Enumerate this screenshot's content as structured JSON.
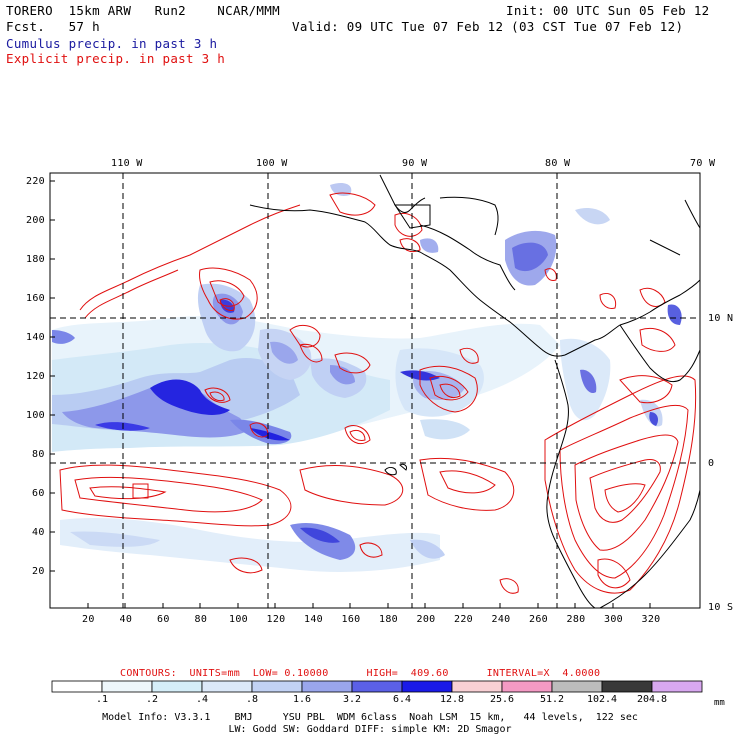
{
  "header": {
    "model": "TORERO  15km ARW   Run2    NCAR/MMM",
    "init": "Init: 00 UTC Sun 05 Feb 12",
    "fcst": "Fcst.   57 h",
    "valid": "Valid: 09 UTC Tue 07 Feb 12 (03 CST Tue 07 Feb 12)",
    "cumulus_label": "Cumulus precip. in past 3 h",
    "explicit_label": "Explicit precip. in past 3 h"
  },
  "axes": {
    "top_lon_labels": [
      "110 W",
      "100 W",
      "90 W",
      "80 W",
      "70 W"
    ],
    "right_lat_labels": [
      "10 N",
      "0",
      "10 S"
    ],
    "left_y_ticks": [
      "220",
      "200",
      "180",
      "160",
      "140",
      "120",
      "100",
      "80",
      "60",
      "40",
      "20"
    ],
    "bottom_x_ticks": [
      "20",
      "40",
      "60",
      "80",
      "100",
      "120",
      "140",
      "160",
      "180",
      "200",
      "220",
      "240",
      "260",
      "280",
      "300",
      "320"
    ]
  },
  "contours_info": {
    "text": "CONTOURS:  UNITS=mm  LOW= 0.10000      HIGH=  409.60      INTERVAL=X  4.0000"
  },
  "colorbar": {
    "unit": "mm",
    "labels": [
      ".1",
      ".2",
      ".4",
      ".8",
      "1.6",
      "3.2",
      "6.4",
      "12.8",
      "25.6",
      "51.2",
      "102.4",
      "204.8"
    ],
    "colors": [
      "#ffffff",
      "#eef7fb",
      "#d5eef8",
      "#dce9f9",
      "#c2d2f4",
      "#9aa6ec",
      "#5b60e6",
      "#1a1ae8",
      "#f8d0d4",
      "#f49ac4",
      "#bcbcbc",
      "#383838",
      "#d8a8f0"
    ]
  },
  "footer": {
    "line1": "Model Info: V3.3.1    BMJ     YSU PBL  WDM 6class  Noah LSM  15 km,   44 levels,  122 sec",
    "line2": "LW: Godd SW: Goddard DIFF: simple KM: 2D Smagor"
  }
}
